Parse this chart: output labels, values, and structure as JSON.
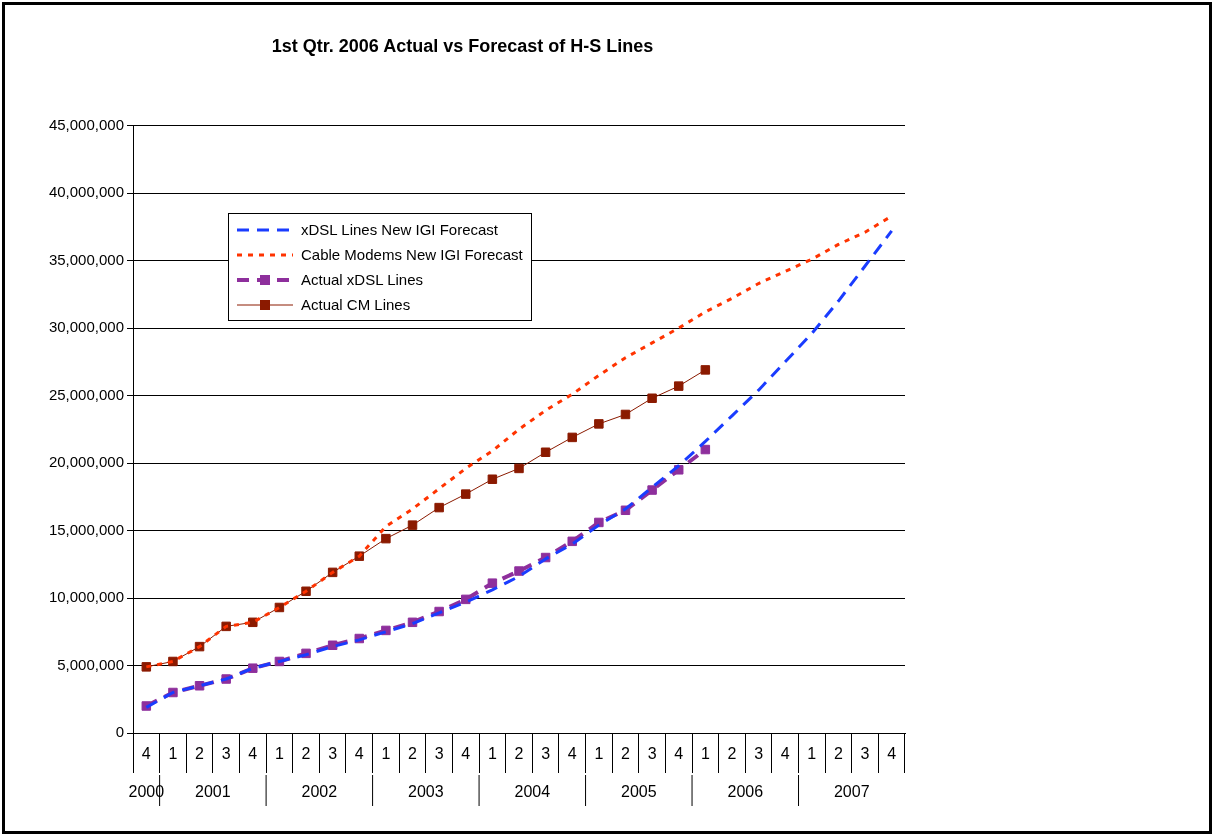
{
  "chart_data": {
    "type": "line",
    "title": "1st Qtr. 2006 Actual vs Forecast of H-S Lines",
    "categories": [
      "4",
      "1",
      "2",
      "3",
      "4",
      "1",
      "2",
      "3",
      "4",
      "1",
      "2",
      "3",
      "4",
      "1",
      "2",
      "3",
      "4",
      "1",
      "2",
      "3",
      "4",
      "1",
      "2",
      "3",
      "4",
      "1",
      "2",
      "3",
      "4"
    ],
    "annotations": [
      "2000",
      "2001",
      "2002",
      "2003",
      "2004",
      "2005",
      "2006",
      "2007"
    ],
    "ylim": [
      0,
      45000000
    ],
    "yticks": [
      0,
      {
        "value": 5000000,
        "label": "5,000,000"
      },
      {
        "value": 10000000,
        "label": "10,000,000"
      },
      {
        "value": 15000000,
        "label": "15,000,000"
      },
      {
        "value": 20000000,
        "label": "20,000,000"
      },
      {
        "value": 25000000,
        "label": "25,000,000"
      },
      {
        "value": 30000000,
        "label": "30,000,000"
      },
      {
        "value": 35000000,
        "label": "35,000,000"
      },
      {
        "value": 40000000,
        "label": "40,000,000"
      },
      {
        "value": 45000000,
        "label": "45,000,000"
      }
    ],
    "grid": "y",
    "legend": "top left",
    "series": [
      {
        "name": "xDSL Lines New IGI Forecast",
        "color": "#1a3cff",
        "line_style": "dashed",
        "marker": "none",
        "values": [
          1900000,
          3000000,
          3500000,
          4000000,
          4800000,
          5300000,
          5800000,
          6400000,
          6900000,
          7500000,
          8100000,
          8900000,
          9700000,
          10600000,
          11600000,
          12900000,
          14000000,
          15400000,
          16600000,
          18200000,
          19800000,
          21600000,
          23500000,
          25400000,
          27500000,
          29600000,
          32000000,
          34600000,
          37200000
        ]
      },
      {
        "name": "Cable Modems New IGI Forecast",
        "color": "#ff3300",
        "line_style": "dotted",
        "marker": "none",
        "values": [
          4900000,
          5300000,
          6400000,
          7900000,
          8200000,
          9300000,
          10500000,
          11900000,
          13100000,
          15300000,
          16600000,
          18100000,
          19600000,
          20900000,
          22500000,
          23900000,
          25100000,
          26500000,
          27800000,
          28900000,
          30000000,
          31200000,
          32200000,
          33300000,
          34200000,
          35100000,
          36200000,
          37100000,
          38300000
        ]
      },
      {
        "name": "Actual xDSL Lines",
        "color": "#8e2f9c",
        "line_style": "dashed",
        "marker": "square",
        "values": [
          2000000,
          3000000,
          3500000,
          4000000,
          4800000,
          5300000,
          5900000,
          6500000,
          7000000,
          7600000,
          8200000,
          9000000,
          9900000,
          11100000,
          12000000,
          13000000,
          14200000,
          15600000,
          16500000,
          18000000,
          19500000,
          21000000,
          null,
          null,
          null,
          null,
          null,
          null,
          null
        ]
      },
      {
        "name": "Actual CM Lines",
        "color": "#8b1a00",
        "line_style": "solid",
        "marker": "square",
        "values": [
          4900000,
          5300000,
          6400000,
          7900000,
          8200000,
          9300000,
          10500000,
          11900000,
          13100000,
          14400000,
          15400000,
          16700000,
          17700000,
          18800000,
          19600000,
          20800000,
          21900000,
          22900000,
          23600000,
          24800000,
          25700000,
          26900000,
          null,
          null,
          null,
          null,
          null,
          null,
          null
        ]
      }
    ]
  }
}
